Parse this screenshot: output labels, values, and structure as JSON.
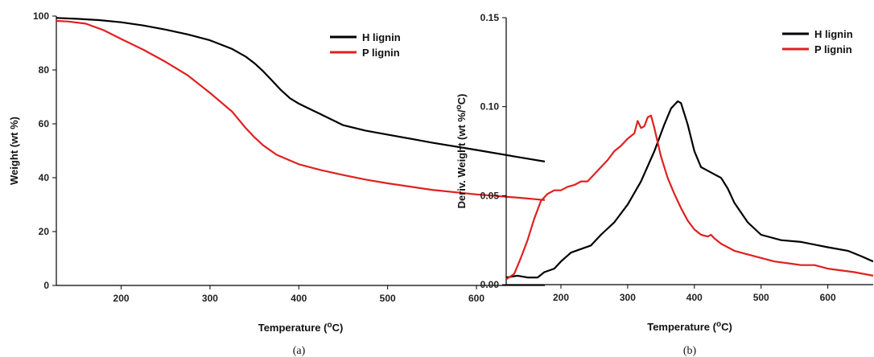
{
  "chart_data": [
    {
      "type": "line",
      "panel": "(a)",
      "xlabel": "Temperature (°C)",
      "ylabel": "Weight (wt %)",
      "xlim": [
        127,
        677
      ],
      "ylim": [
        0,
        100
      ],
      "xticks": [
        200,
        300,
        400,
        500,
        600
      ],
      "yticks": [
        0,
        20,
        40,
        60,
        80,
        100
      ],
      "grid": false,
      "legend_position": "top-right",
      "series": [
        {
          "name": "H lignin",
          "color": "#000000",
          "x": [
            127,
            150,
            175,
            200,
            225,
            250,
            275,
            300,
            325,
            340,
            350,
            360,
            370,
            380,
            390,
            400,
            425,
            450,
            475,
            500,
            550,
            600,
            650,
            677
          ],
          "y": [
            99.3,
            99,
            98.5,
            97.7,
            96.5,
            95,
            93.2,
            91,
            87.8,
            85,
            82.5,
            79.5,
            76,
            72.5,
            69.5,
            67.5,
            63.5,
            59.5,
            57.5,
            56,
            53,
            50.3,
            47.5,
            46
          ]
        },
        {
          "name": "P lignin",
          "color": "#e02020",
          "x": [
            127,
            140,
            160,
            180,
            200,
            225,
            250,
            275,
            300,
            325,
            340,
            350,
            360,
            375,
            400,
            425,
            450,
            475,
            500,
            550,
            600,
            650,
            677
          ],
          "y": [
            98.2,
            98,
            97.2,
            94.8,
            91.5,
            87.5,
            83,
            78,
            71.5,
            64.5,
            58.5,
            55,
            52,
            48.5,
            45,
            42.8,
            41,
            39.3,
            37.9,
            35.5,
            33.8,
            32.5,
            31.7
          ]
        }
      ]
    },
    {
      "type": "line",
      "panel": "(b)",
      "xlabel": "Temperature (°C)",
      "ylabel": "Deriv. Weight (wt %/°C)",
      "xlim": [
        118,
        668
      ],
      "ylim": [
        0,
        0.15
      ],
      "xticks": [
        200,
        300,
        400,
        500,
        600
      ],
      "yticks": [
        0.0,
        0.05,
        0.1,
        0.15
      ],
      "ytick_labels": [
        "0.00",
        "0.05",
        "0.10",
        "0.15"
      ],
      "grid": false,
      "legend_position": "top-right",
      "series": [
        {
          "name": "H lignin",
          "color": "#000000",
          "x": [
            118,
            135,
            150,
            165,
            175,
            190,
            200,
            215,
            230,
            245,
            260,
            280,
            300,
            320,
            340,
            355,
            365,
            375,
            380,
            390,
            400,
            410,
            420,
            430,
            440,
            450,
            460,
            480,
            500,
            530,
            560,
            600,
            630,
            650,
            668
          ],
          "y": [
            0.004,
            0.005,
            0.004,
            0.004,
            0.007,
            0.009,
            0.013,
            0.018,
            0.02,
            0.022,
            0.028,
            0.035,
            0.045,
            0.058,
            0.075,
            0.09,
            0.099,
            0.103,
            0.102,
            0.09,
            0.075,
            0.066,
            0.064,
            0.062,
            0.06,
            0.054,
            0.046,
            0.035,
            0.028,
            0.025,
            0.024,
            0.021,
            0.019,
            0.016,
            0.013
          ]
        },
        {
          "name": "P lignin",
          "color": "#e02020",
          "x": [
            118,
            130,
            140,
            150,
            160,
            170,
            180,
            190,
            200,
            210,
            220,
            230,
            240,
            250,
            260,
            270,
            280,
            290,
            300,
            310,
            315,
            320,
            325,
            330,
            335,
            340,
            350,
            360,
            370,
            380,
            390,
            400,
            410,
            420,
            425,
            430,
            440,
            460,
            480,
            500,
            520,
            540,
            560,
            580,
            600,
            640,
            668
          ],
          "y": [
            0.003,
            0.006,
            0.015,
            0.025,
            0.037,
            0.047,
            0.051,
            0.053,
            0.053,
            0.055,
            0.056,
            0.058,
            0.058,
            0.062,
            0.066,
            0.07,
            0.075,
            0.078,
            0.082,
            0.085,
            0.092,
            0.088,
            0.089,
            0.094,
            0.095,
            0.088,
            0.072,
            0.06,
            0.051,
            0.043,
            0.036,
            0.031,
            0.028,
            0.027,
            0.028,
            0.026,
            0.023,
            0.019,
            0.017,
            0.015,
            0.013,
            0.012,
            0.011,
            0.011,
            0.009,
            0.007,
            0.005
          ]
        }
      ]
    }
  ]
}
